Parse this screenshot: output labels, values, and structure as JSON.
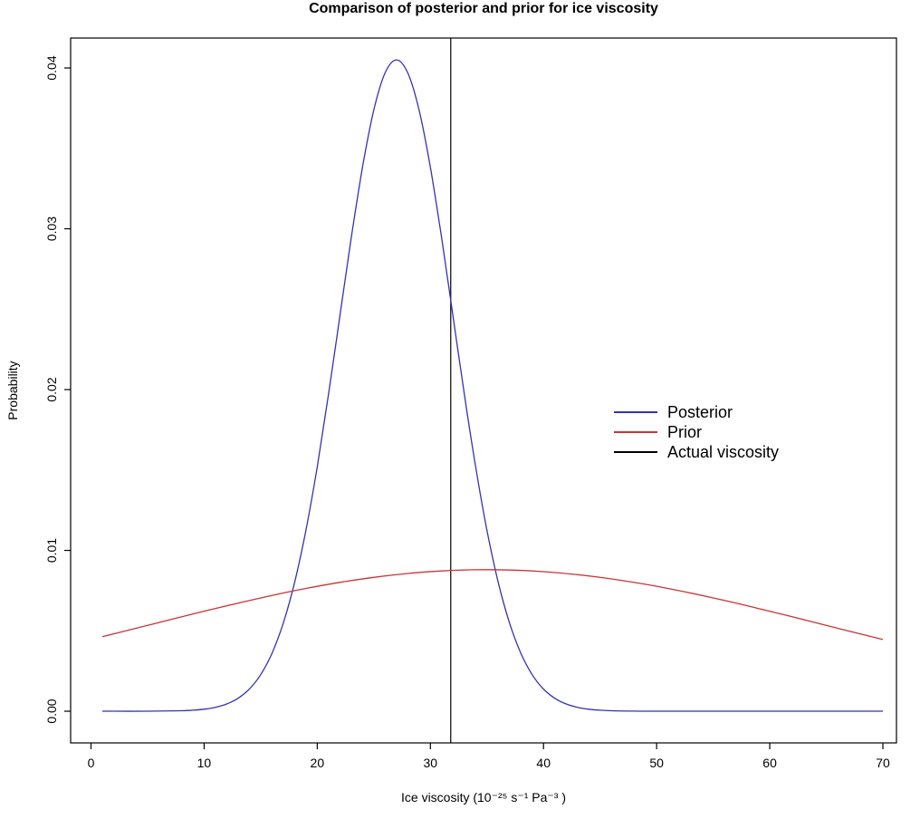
{
  "chart_data": {
    "type": "line",
    "title": "Comparison of posterior and prior for ice viscosity",
    "xlabel": "Ice viscosity (10⁻²⁵ s⁻¹ Pa⁻³ )",
    "ylabel": "Probability",
    "xlim": [
      -1.8,
      71.2
    ],
    "ylim": [
      -0.00197,
      0.04186
    ],
    "xticks": [
      0,
      10,
      20,
      30,
      40,
      50,
      60,
      70
    ],
    "yticks": [
      0,
      0.01,
      0.02,
      0.03,
      0.04
    ],
    "ytick_labels": [
      "0.00",
      "0.01",
      "0.02",
      "0.03",
      "0.04"
    ],
    "grid": false,
    "legend_position": "right-center",
    "series": [
      {
        "name": "Posterior",
        "color": "#3333b3",
        "x": [
          1,
          5,
          8,
          9,
          10,
          11,
          12,
          13,
          14,
          15,
          16,
          17,
          18,
          19,
          20,
          21,
          22,
          23,
          24,
          25,
          26,
          27,
          28,
          29,
          30,
          31,
          32,
          33,
          34,
          35,
          36,
          37,
          38,
          39,
          40,
          41,
          42,
          43,
          44,
          45,
          46,
          48,
          50,
          55,
          60,
          65,
          70
        ],
        "y": [
          0,
          3e-06,
          3e-05,
          6.2e-05,
          0.000125,
          0.000242,
          0.00045,
          0.000804,
          0.001379,
          0.002273,
          0.003601,
          0.005481,
          0.008015,
          0.011261,
          0.0152,
          0.019713,
          0.024564,
          0.029409,
          0.033828,
          0.037386,
          0.039698,
          0.0405,
          0.039698,
          0.037386,
          0.033828,
          0.029409,
          0.024564,
          0.019713,
          0.0152,
          0.011261,
          0.008015,
          0.005481,
          0.003601,
          0.002273,
          0.001379,
          0.000804,
          0.00045,
          0.000242,
          0.000125,
          6.2e-05,
          3e-05,
          7e-06,
          1e-06,
          0,
          0,
          0,
          0
        ]
      },
      {
        "name": "Prior",
        "color": "#cd3333",
        "x": [
          1,
          4,
          7,
          10,
          13,
          16,
          19,
          22,
          25,
          28,
          31,
          34,
          37,
          40,
          43,
          46,
          49,
          52,
          55,
          58,
          61,
          64,
          67,
          70
        ],
        "y": [
          0.00463,
          0.00516,
          0.005693,
          0.006219,
          0.006725,
          0.007201,
          0.007633,
          0.008011,
          0.008324,
          0.008564,
          0.008722,
          0.008795,
          0.00878,
          0.008679,
          0.008493,
          0.008228,
          0.007892,
          0.007495,
          0.007046,
          0.006559,
          0.006045,
          0.005515,
          0.004982,
          0.004456
        ]
      }
    ],
    "vline": {
      "label": "Actual viscosity",
      "x": 31.8,
      "color": "#000000"
    }
  }
}
